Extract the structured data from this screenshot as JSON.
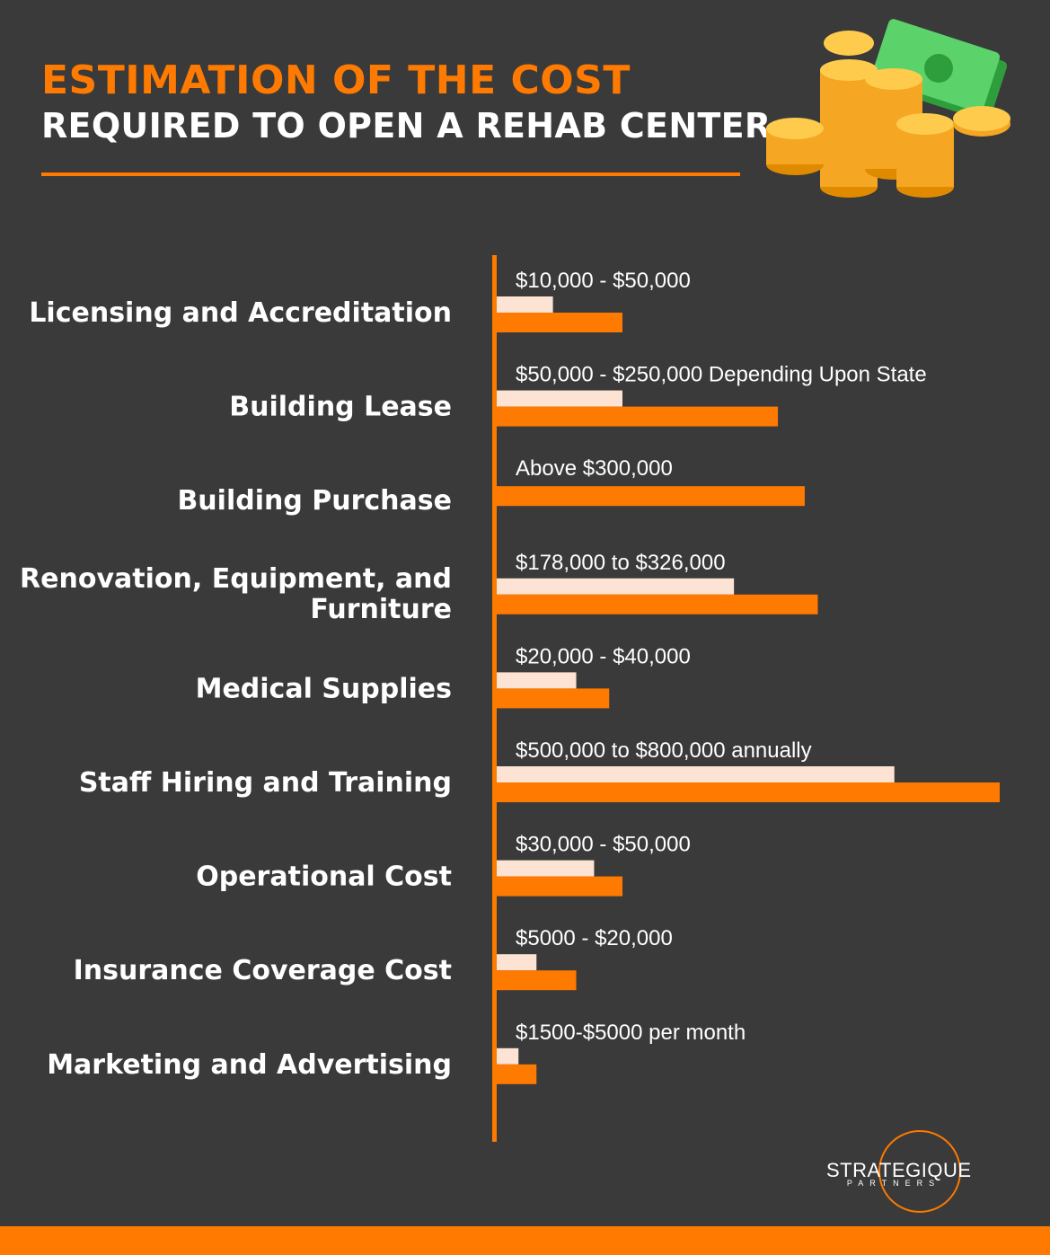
{
  "header": {
    "title_line1": "ESTIMATION OF THE COST",
    "title_line2": "REQUIRED TO OPEN A REHAB CENTER"
  },
  "colors": {
    "background": "#3a3a3a",
    "accent": "#ff7a00",
    "light_bar": "#fde3d3",
    "text": "#ffffff"
  },
  "icons": [
    "money-stack-icon",
    "coin-icon"
  ],
  "chart_data": {
    "type": "bar",
    "orientation": "horizontal",
    "categories": [
      "Licensing and Accreditation",
      "Building Lease",
      "Building Purchase",
      "Renovation, Equipment, and Furniture",
      "Medical Supplies",
      "Staff Hiring and Training",
      "Operational Cost",
      "Insurance Coverage Cost",
      "Marketing and Advertising"
    ],
    "value_labels": [
      "$10,000 - $50,000",
      "$50,000 - $250,000 Depending Upon State",
      "Above $300,000",
      "$178,000 to $326,000",
      "$20,000 - $40,000",
      "$500,000 to $800,000 annually",
      "$30,000 - $50,000",
      "$5000 - $20,000",
      "$1500-$5000 per month"
    ],
    "series": [
      {
        "values": [
          10000,
          50000,
          null,
          178000,
          20000,
          500000,
          30000,
          5000,
          1500
        ]
      },
      {
        "values": [
          50000,
          250000,
          300000,
          326000,
          40000,
          800000,
          50000,
          20000,
          5000
        ]
      }
    ],
    "series_colors": [
      "#fde3d3",
      "#ff7a00"
    ]
  },
  "logo": {
    "word": "STRATEGIQUE",
    "sub": "PARTNERS"
  }
}
